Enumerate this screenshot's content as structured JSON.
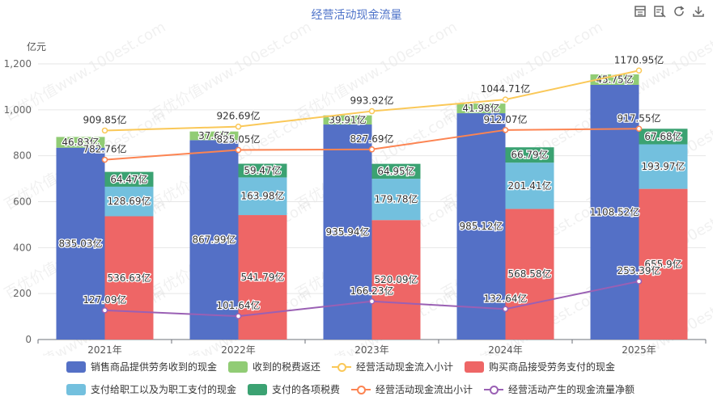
{
  "title": "经营活动现金流量",
  "toolbar": [
    "data-view-icon",
    "data-zoom-icon",
    "restore-icon",
    "download-icon"
  ],
  "watermark": "百优价值www.100est.com",
  "chart_data": {
    "type": "bar",
    "ylabel_unit": "亿元",
    "ylim": [
      0,
      1200
    ],
    "yticks": [
      "0",
      "200",
      "400",
      "600",
      "800",
      "1,000",
      "1,200"
    ],
    "categories": [
      "2021年",
      "2022年",
      "2023年",
      "2024年",
      "2025年"
    ],
    "stacks": [
      {
        "stack": "inflow",
        "series": [
          {
            "name": "销售商品提供劳务收到的现金",
            "color": "#5470c6",
            "values": [
              835.03,
              867.99,
              935.94,
              985.12,
              1108.52
            ],
            "labels": [
              "835.03亿",
              "867.99亿",
              "935.94亿",
              "985.12亿",
              "1108.52亿"
            ]
          },
          {
            "name": "收到的税费返还",
            "color": "#91cc75",
            "values": [
              46.83,
              37.6,
              39.91,
              41.98,
              45.75
            ],
            "labels": [
              "46.83亿",
              "37.6亿",
              "39.91亿",
              "41.98亿",
              "45.75亿"
            ]
          }
        ]
      },
      {
        "stack": "outflow",
        "series": [
          {
            "name": "购买商品接受劳务支付的现金",
            "color": "#ee6666",
            "values": [
              536.63,
              541.79,
              520.09,
              568.58,
              655.9
            ],
            "labels": [
              "536.63亿",
              "541.79亿",
              "520.09亿",
              "568.58亿",
              "655.9亿"
            ]
          },
          {
            "name": "支付给职工以及为职工支付的现金",
            "color": "#73c0de",
            "values": [
              128.69,
              163.98,
              179.78,
              201.41,
              193.97
            ],
            "labels": [
              "128.69亿",
              "163.98亿",
              "179.78亿",
              "201.41亿",
              "193.97亿"
            ]
          },
          {
            "name": "支付的各项税费",
            "color": "#3ba272",
            "values": [
              64.47,
              59.47,
              64.95,
              66.79,
              67.68
            ],
            "labels": [
              "64.47亿",
              "59.47亿",
              "64.95亿",
              "66.79亿",
              "67.68亿"
            ]
          }
        ]
      }
    ],
    "lines": [
      {
        "name": "经营活动现金流入小计",
        "color": "#fac858",
        "values": [
          909.85,
          926.69,
          993.92,
          1044.71,
          1170.95
        ],
        "labels": [
          "909.85亿",
          "926.69亿",
          "993.92亿",
          "1044.71亿",
          "1170.95亿"
        ]
      },
      {
        "name": "经营活动现金流出小计",
        "color": "#fc8452",
        "values": [
          782.76,
          825.05,
          827.69,
          912.07,
          917.55
        ],
        "labels": [
          "782.76亿",
          "825.05亿",
          "827.69亿",
          "912.07亿",
          "917.55亿"
        ]
      },
      {
        "name": "经营活动产生的现金流量净额",
        "color": "#9a60b4",
        "values": [
          127.09,
          101.64,
          166.23,
          132.64,
          253.39
        ],
        "labels": [
          "127.09亿",
          "101.64亿",
          "166.23亿",
          "132.64亿",
          "253.39亿"
        ]
      }
    ],
    "legend_order": [
      [
        "销售商品提供劳务收到的现金",
        "收到的税费返还",
        "经营活动现金流入小计",
        "购买商品接受劳务支付的现金"
      ],
      [
        "支付给职工以及为职工支付的现金",
        "支付的各项税费",
        "经营活动现金流出小计",
        "经营活动产生的现金流量净额"
      ]
    ]
  }
}
